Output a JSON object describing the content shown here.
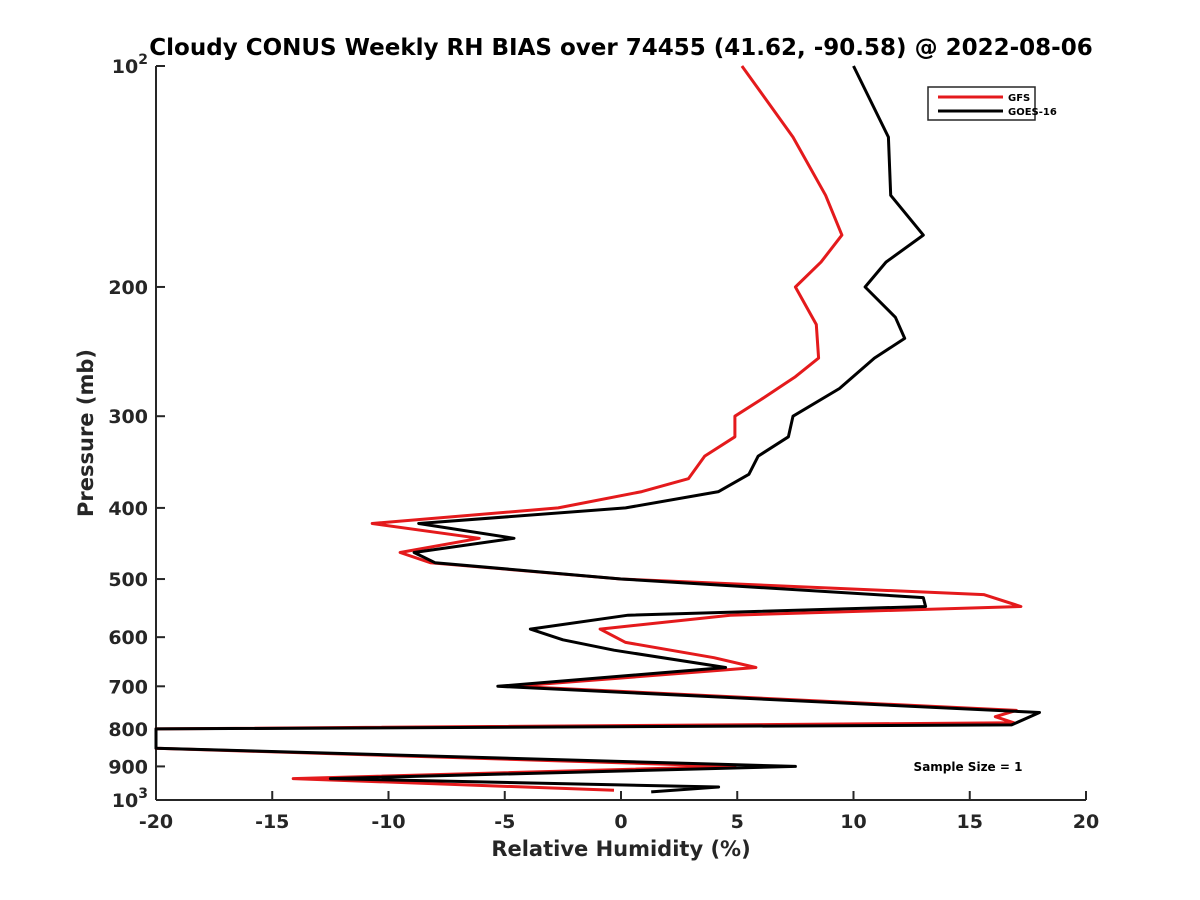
{
  "chart_data": {
    "type": "line",
    "title": "Cloudy CONUS Weekly RH BIAS over 74455 (41.62, -90.58) @ 2022-08-06",
    "xlabel": "Relative Humidity (%)",
    "ylabel": "Pressure (mb)",
    "xlim": [
      -20,
      20
    ],
    "ylim": [
      1000,
      100
    ],
    "yscale": "log",
    "x_ticks": [
      "-20",
      "-15",
      "-10",
      "-5",
      "0",
      "5",
      "10",
      "15",
      "20"
    ],
    "y_ticks": [
      {
        "value": 100,
        "base": "10",
        "exp": "2"
      },
      {
        "value": 200,
        "label": "200"
      },
      {
        "value": 300,
        "label": "300"
      },
      {
        "value": 400,
        "label": "400"
      },
      {
        "value": 500,
        "label": "500"
      },
      {
        "value": 600,
        "label": "600"
      },
      {
        "value": 700,
        "label": "700"
      },
      {
        "value": 800,
        "label": "800"
      },
      {
        "value": 900,
        "label": "900"
      },
      {
        "value": 1000,
        "base": "10",
        "exp": "3"
      }
    ],
    "legend_position": "top-right",
    "grid": false,
    "annotation": "Sample Size = 1",
    "series": [
      {
        "name": "GFS",
        "color": "#e41a1c",
        "points": [
          [
            5.2,
            100
          ],
          [
            7.4,
            125
          ],
          [
            8.8,
            150
          ],
          [
            9.5,
            170
          ],
          [
            8.6,
            185
          ],
          [
            7.5,
            200
          ],
          [
            8.4,
            225
          ],
          [
            8.5,
            250
          ],
          [
            7.5,
            265
          ],
          [
            6.0,
            285
          ],
          [
            4.9,
            300
          ],
          [
            4.9,
            320
          ],
          [
            3.6,
            340
          ],
          [
            2.9,
            365
          ],
          [
            0.9,
            380
          ],
          [
            -2.7,
            400
          ],
          [
            -10.7,
            420
          ],
          [
            -6.1,
            440
          ],
          [
            -9.5,
            460
          ],
          [
            -8.2,
            475
          ],
          [
            0.0,
            500
          ],
          [
            15.6,
            525
          ],
          [
            17.2,
            545
          ],
          [
            4.7,
            560
          ],
          [
            -0.9,
            585
          ],
          [
            0.2,
            610
          ],
          [
            4.0,
            640
          ],
          [
            5.8,
            660
          ],
          [
            -4.6,
            700
          ],
          [
            17.0,
            755
          ],
          [
            16.1,
            770
          ],
          [
            16.9,
            785
          ],
          [
            -20,
            800
          ],
          [
            -20,
            850
          ],
          [
            4.9,
            900
          ],
          [
            -14.1,
            935
          ],
          [
            -0.3,
            970
          ]
        ]
      },
      {
        "name": "GOES-16",
        "color": "#000000",
        "points": [
          [
            10.0,
            100
          ],
          [
            11.5,
            125
          ],
          [
            11.6,
            150
          ],
          [
            13.0,
            170
          ],
          [
            11.4,
            185
          ],
          [
            10.5,
            200
          ],
          [
            11.8,
            220
          ],
          [
            12.2,
            235
          ],
          [
            10.9,
            250
          ],
          [
            9.4,
            275
          ],
          [
            7.4,
            300
          ],
          [
            7.2,
            320
          ],
          [
            5.9,
            340
          ],
          [
            5.5,
            360
          ],
          [
            4.2,
            380
          ],
          [
            0.2,
            400
          ],
          [
            -8.7,
            420
          ],
          [
            -4.6,
            440
          ],
          [
            -8.9,
            460
          ],
          [
            -8.0,
            475
          ],
          [
            0.0,
            500
          ],
          [
            13.0,
            530
          ],
          [
            13.1,
            545
          ],
          [
            0.3,
            560
          ],
          [
            -3.9,
            585
          ],
          [
            -2.5,
            605
          ],
          [
            -0.3,
            625
          ],
          [
            4.5,
            660
          ],
          [
            -5.3,
            700
          ],
          [
            18.0,
            760
          ],
          [
            16.8,
            790
          ],
          [
            -20,
            800
          ],
          [
            -20,
            850
          ],
          [
            7.5,
            900
          ],
          [
            -12.5,
            935
          ],
          [
            4.2,
            960
          ],
          [
            1.3,
            975
          ]
        ]
      }
    ]
  }
}
